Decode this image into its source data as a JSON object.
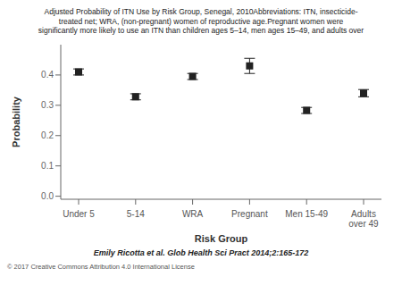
{
  "chart_data": {
    "type": "scatter",
    "title": "Adjusted Probability of ITN Use by Risk Group, Senegal, 2010Abbreviations: ITN, insecticide-\ntreated net; WRA, (non-pregnant) women of reproductive age.Pregnant women were\nsignificantly more likely to use an ITN than children ages 5–14, men ages 15–49, and adults over",
    "categories": [
      "Under 5",
      "5-14",
      "WRA",
      "Pregnant",
      "Men 15-49",
      "Adults\nover 49"
    ],
    "values": [
      0.41,
      0.328,
      0.395,
      0.43,
      0.283,
      0.34
    ],
    "ci_low": [
      0.4,
      0.318,
      0.385,
      0.405,
      0.273,
      0.328
    ],
    "ci_high": [
      0.42,
      0.338,
      0.405,
      0.455,
      0.293,
      0.352
    ],
    "xlabel": "Risk Group",
    "ylabel": "Probability",
    "ylim": [
      -0.01,
      0.5
    ],
    "yticks": [
      {
        "value": 0,
        "label": "0.0"
      },
      0.1,
      0.2,
      0.3,
      0.4
    ],
    "color": "#222222",
    "marker": "square",
    "grid": false,
    "annotations": [
      "Emily Ricotta et al. Glob Health Sci Pract 2014;2:165-172",
      "© 2017 Creative Commons Attribution 4.0 International License"
    ]
  }
}
